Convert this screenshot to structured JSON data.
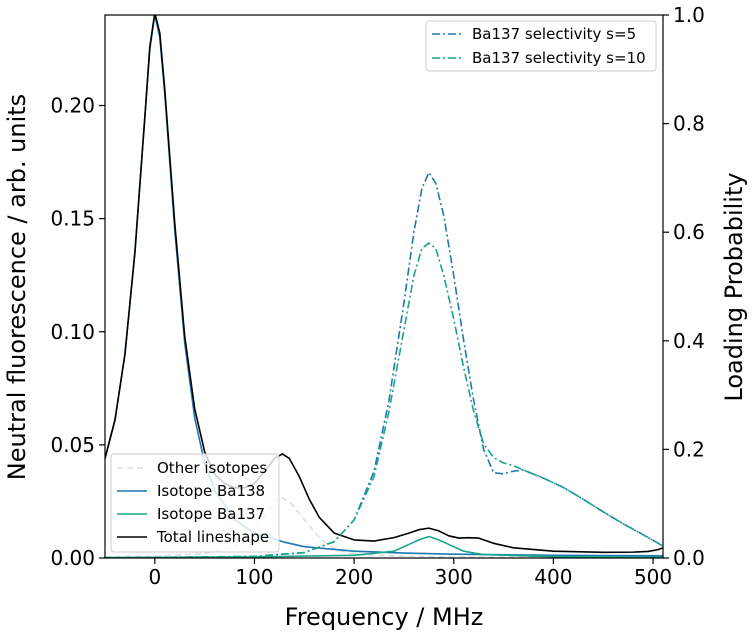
{
  "chart_data": {
    "type": "line",
    "xlabel": "Frequency / MHz",
    "ylabel_left": "Neutral fluorescence / arb. units",
    "ylabel_right": "Loading Probability",
    "xlim": [
      -50,
      510
    ],
    "ylim_left": [
      0,
      0.24
    ],
    "ylim_right": [
      0,
      1.0
    ],
    "xticks": [
      0,
      100,
      200,
      300,
      400,
      500
    ],
    "yticks_left": [
      "0.00",
      "0.05",
      "0.10",
      "0.15",
      "0.20"
    ],
    "yticks_right": [
      "0.0",
      "0.2",
      "0.4",
      "0.6",
      "0.8",
      "1.0"
    ],
    "legend_left_position": "lower-left",
    "legend_right_position": "upper-right",
    "grid": false,
    "series_left": [
      {
        "name": "Other isotopes",
        "color": "#dddddd",
        "style": "dashed",
        "points": [
          [
            -50,
            0.0005
          ],
          [
            0,
            0.0008
          ],
          [
            50,
            0.002
          ],
          [
            80,
            0.005
          ],
          [
            100,
            0.012
          ],
          [
            115,
            0.022
          ],
          [
            125,
            0.027
          ],
          [
            135,
            0.025
          ],
          [
            150,
            0.017
          ],
          [
            165,
            0.009
          ],
          [
            180,
            0.004
          ],
          [
            200,
            0.0015
          ],
          [
            250,
            0.0008
          ],
          [
            300,
            0.0005
          ],
          [
            400,
            0.0003
          ],
          [
            510,
            0.0003
          ]
        ]
      },
      {
        "name": "Isotope Ba138",
        "color": "#1f77b4",
        "style": "solid",
        "points": [
          [
            -50,
            0.044
          ],
          [
            -40,
            0.061
          ],
          [
            -30,
            0.09
          ],
          [
            -20,
            0.135
          ],
          [
            -10,
            0.195
          ],
          [
            -5,
            0.225
          ],
          [
            0,
            0.24
          ],
          [
            5,
            0.23
          ],
          [
            10,
            0.205
          ],
          [
            20,
            0.145
          ],
          [
            30,
            0.095
          ],
          [
            40,
            0.062
          ],
          [
            50,
            0.042
          ],
          [
            60,
            0.03
          ],
          [
            80,
            0.017
          ],
          [
            100,
            0.011
          ],
          [
            130,
            0.007
          ],
          [
            150,
            0.005
          ],
          [
            200,
            0.003
          ],
          [
            250,
            0.0022
          ],
          [
            300,
            0.0017
          ],
          [
            400,
            0.0012
          ],
          [
            510,
            0.001
          ]
        ]
      },
      {
        "name": "Isotope Ba137",
        "color": "#17a589",
        "style": "solid",
        "points": [
          [
            -50,
            0.0002
          ],
          [
            100,
            0.0005
          ],
          [
            200,
            0.0012
          ],
          [
            240,
            0.003
          ],
          [
            255,
            0.006
          ],
          [
            265,
            0.008
          ],
          [
            275,
            0.0095
          ],
          [
            285,
            0.008
          ],
          [
            295,
            0.006
          ],
          [
            310,
            0.003
          ],
          [
            330,
            0.0015
          ],
          [
            400,
            0.0006
          ],
          [
            510,
            0.0003
          ]
        ]
      },
      {
        "name": "Total lineshape",
        "color": "#000000",
        "style": "solid",
        "points": [
          [
            -50,
            0.044
          ],
          [
            -40,
            0.061
          ],
          [
            -30,
            0.09
          ],
          [
            -20,
            0.135
          ],
          [
            -10,
            0.195
          ],
          [
            -5,
            0.226
          ],
          [
            0,
            0.241
          ],
          [
            5,
            0.232
          ],
          [
            10,
            0.207
          ],
          [
            20,
            0.148
          ],
          [
            30,
            0.098
          ],
          [
            40,
            0.066
          ],
          [
            50,
            0.047
          ],
          [
            60,
            0.037
          ],
          [
            70,
            0.033
          ],
          [
            80,
            0.031
          ],
          [
            90,
            0.031
          ],
          [
            100,
            0.033
          ],
          [
            110,
            0.038
          ],
          [
            120,
            0.044
          ],
          [
            128,
            0.046
          ],
          [
            135,
            0.044
          ],
          [
            145,
            0.036
          ],
          [
            155,
            0.026
          ],
          [
            165,
            0.018
          ],
          [
            180,
            0.011
          ],
          [
            200,
            0.008
          ],
          [
            220,
            0.0075
          ],
          [
            240,
            0.009
          ],
          [
            255,
            0.011
          ],
          [
            265,
            0.0125
          ],
          [
            275,
            0.0132
          ],
          [
            285,
            0.012
          ],
          [
            295,
            0.0098
          ],
          [
            305,
            0.0088
          ],
          [
            315,
            0.009
          ],
          [
            325,
            0.0088
          ],
          [
            340,
            0.0065
          ],
          [
            360,
            0.0045
          ],
          [
            400,
            0.003
          ],
          [
            450,
            0.0025
          ],
          [
            480,
            0.0026
          ],
          [
            495,
            0.0029
          ],
          [
            505,
            0.0037
          ],
          [
            510,
            0.0045
          ]
        ]
      }
    ],
    "series_right": [
      {
        "name": "Ba137 selectivity s=5",
        "color": "#1f77b4",
        "style": "dashdot",
        "points": [
          [
            -50,
            0.0
          ],
          [
            100,
            0.003
          ],
          [
            150,
            0.01
          ],
          [
            180,
            0.03
          ],
          [
            200,
            0.07
          ],
          [
            220,
            0.16
          ],
          [
            235,
            0.29
          ],
          [
            250,
            0.47
          ],
          [
            260,
            0.6
          ],
          [
            268,
            0.68
          ],
          [
            275,
            0.71
          ],
          [
            282,
            0.69
          ],
          [
            290,
            0.63
          ],
          [
            300,
            0.52
          ],
          [
            310,
            0.4
          ],
          [
            320,
            0.29
          ],
          [
            330,
            0.2
          ],
          [
            340,
            0.157
          ],
          [
            350,
            0.155
          ],
          [
            360,
            0.16
          ],
          [
            370,
            0.162
          ],
          [
            390,
            0.147
          ],
          [
            410,
            0.13
          ],
          [
            430,
            0.108
          ],
          [
            450,
            0.085
          ],
          [
            470,
            0.063
          ],
          [
            490,
            0.043
          ],
          [
            510,
            0.022
          ]
        ]
      },
      {
        "name": "Ba137 selectivity s=10",
        "color": "#17a589",
        "style": "dashdot",
        "points": [
          [
            -50,
            0.0
          ],
          [
            100,
            0.003
          ],
          [
            150,
            0.01
          ],
          [
            180,
            0.03
          ],
          [
            200,
            0.07
          ],
          [
            220,
            0.15
          ],
          [
            235,
            0.27
          ],
          [
            250,
            0.42
          ],
          [
            260,
            0.52
          ],
          [
            268,
            0.57
          ],
          [
            275,
            0.58
          ],
          [
            282,
            0.57
          ],
          [
            290,
            0.52
          ],
          [
            300,
            0.44
          ],
          [
            310,
            0.35
          ],
          [
            320,
            0.27
          ],
          [
            330,
            0.21
          ],
          [
            340,
            0.185
          ],
          [
            350,
            0.175
          ],
          [
            360,
            0.17
          ],
          [
            370,
            0.162
          ],
          [
            390,
            0.147
          ],
          [
            410,
            0.13
          ],
          [
            430,
            0.108
          ],
          [
            450,
            0.085
          ],
          [
            470,
            0.063
          ],
          [
            490,
            0.043
          ],
          [
            510,
            0.022
          ]
        ]
      }
    ]
  }
}
